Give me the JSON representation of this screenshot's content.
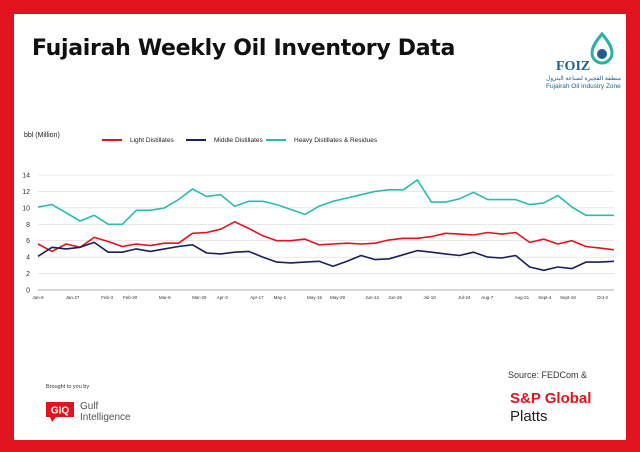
{
  "title": "Fujairah Weekly Oil Inventory Data",
  "logo": {
    "abbr": "FOIZ",
    "arabic": "منطقة الفجيرة لصناعة البترول",
    "name": "Fujairah Oil Industry Zone",
    "color": "#1f5f8f",
    "accent": "#2bb0a3"
  },
  "unit_label": "bbl (Million)",
  "footer": {
    "brought_by": "Brought to you by",
    "gi_logo": "GIQ",
    "gi_name_1": "Gulf",
    "gi_name_2": "Intelligence",
    "source": "Source: FEDCom &",
    "spg_1": "S&P Global",
    "spg_2": "Platts"
  },
  "colors": {
    "frame": "#e1141d",
    "light": "#e1141d",
    "middle": "#1b1f5e",
    "heavy": "#2bbbb0",
    "grid": "#d9d9d9"
  },
  "chart_data": {
    "type": "line",
    "title": "Fujairah Weekly Oil Inventory Data",
    "ylabel": "bbl (Million)",
    "ylim": [
      0,
      14
    ],
    "yticks": [
      0,
      2,
      4,
      6,
      8,
      10,
      12,
      14
    ],
    "grid": true,
    "legend_position": "top",
    "x_count": 42,
    "xtick_labels": [
      {
        "i": 0,
        "label": "Jan-6"
      },
      {
        "i": 3,
        "label": "Jan-27"
      },
      {
        "i": 6,
        "label": "Feb-3"
      },
      {
        "i": 8,
        "label": "Feb-20"
      },
      {
        "i": 11,
        "label": "Mar-6"
      },
      {
        "i": 14,
        "label": "Mar-20"
      },
      {
        "i": 16,
        "label": "Apr-3"
      },
      {
        "i": 19,
        "label": "Apr-17"
      },
      {
        "i": 21,
        "label": "May-1"
      },
      {
        "i": 24,
        "label": "May-15"
      },
      {
        "i": 26,
        "label": "May-29"
      },
      {
        "i": 29,
        "label": "Jun-12"
      },
      {
        "i": 31,
        "label": "Jun-26"
      },
      {
        "i": 34,
        "label": "Jul-10"
      },
      {
        "i": 37,
        "label": "Jul-24"
      },
      {
        "i": 39,
        "label": "Aug-7"
      },
      {
        "i": 42,
        "label": "Aug-21"
      },
      {
        "i": 44,
        "label": "Sept-4"
      },
      {
        "i": 46,
        "label": "Sept-18"
      },
      {
        "i": 49,
        "label": "Oct-2"
      }
    ],
    "series": [
      {
        "name": "Light Distillates",
        "color": "#e1141d",
        "values": [
          5.6,
          4.7,
          5.6,
          5.2,
          6.4,
          5.9,
          5.3,
          5.6,
          5.4,
          5.7,
          5.7,
          6.9,
          7.0,
          7.4,
          8.3,
          7.5,
          6.6,
          6.0,
          6.0,
          6.2,
          5.5,
          5.6,
          5.7,
          5.6,
          5.7,
          6.1,
          6.3,
          6.3,
          6.5,
          6.9,
          6.8,
          6.7,
          7.0,
          6.8,
          7.0,
          5.8,
          6.2,
          5.6,
          6.0,
          5.3,
          5.1,
          4.9
        ]
      },
      {
        "name": "Middle Distillates",
        "color": "#1b1f5e",
        "values": [
          4.1,
          5.2,
          5.0,
          5.2,
          5.8,
          4.6,
          4.6,
          5.0,
          4.7,
          5.0,
          5.3,
          5.5,
          4.5,
          4.4,
          4.6,
          4.7,
          4.0,
          3.4,
          3.3,
          3.4,
          3.5,
          2.9,
          3.5,
          4.2,
          3.7,
          3.8,
          4.3,
          4.8,
          4.6,
          4.4,
          4.2,
          4.6,
          4.0,
          3.9,
          4.2,
          2.8,
          2.4,
          2.8,
          2.6,
          3.4,
          3.4,
          3.5
        ]
      },
      {
        "name": "Heavy Distillates & Residues",
        "color": "#2bbbb0",
        "values": [
          10.1,
          10.4,
          9.4,
          8.4,
          9.1,
          8.0,
          8.0,
          9.7,
          9.7,
          10.0,
          11.0,
          12.3,
          11.4,
          11.6,
          10.2,
          10.8,
          10.8,
          10.4,
          9.8,
          9.2,
          10.2,
          10.8,
          11.2,
          11.6,
          12.0,
          12.2,
          12.2,
          13.4,
          10.7,
          10.7,
          11.1,
          11.9,
          11.0,
          11.0,
          11.0,
          10.4,
          10.6,
          11.5,
          10.1,
          9.1,
          9.1,
          9.1
        ]
      }
    ]
  }
}
